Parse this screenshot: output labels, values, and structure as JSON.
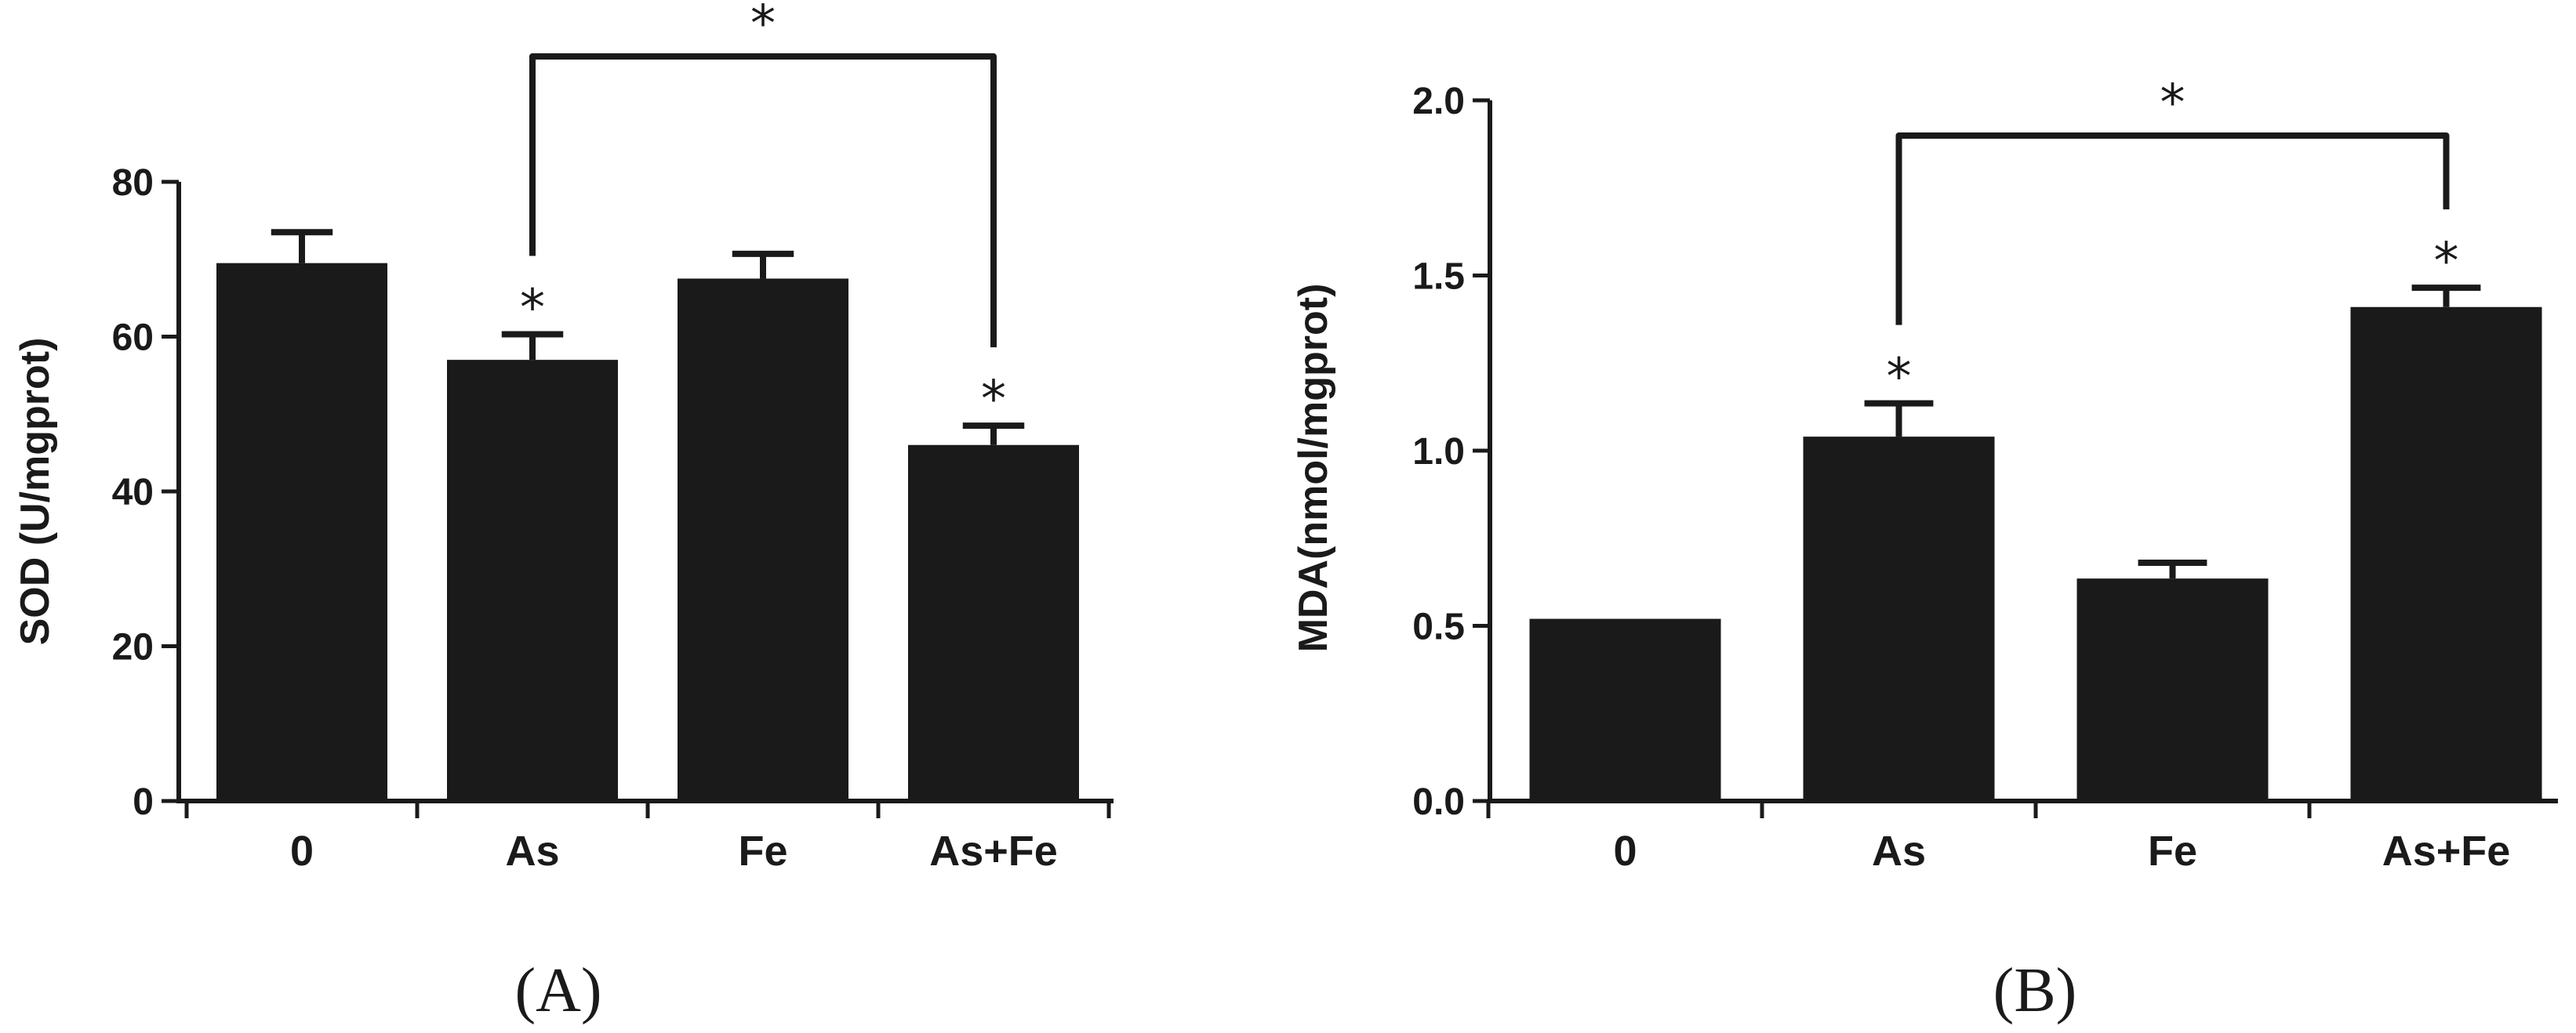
{
  "chart_data": [
    {
      "type": "bar",
      "panel_label": "(A)",
      "ylabel": "SOD (U/mgprot)",
      "categories": [
        "0",
        "As",
        "Fe",
        "As+Fe"
      ],
      "values": [
        69.5,
        57,
        67.5,
        46
      ],
      "errors": [
        4,
        3.3,
        3.2,
        2.5
      ],
      "ylim": [
        0,
        80
      ],
      "yticks": [
        0,
        20,
        40,
        60,
        80
      ],
      "ytick_labels": [
        "0",
        "20",
        "40",
        "60",
        "80"
      ],
      "significance": [
        "",
        "*",
        "",
        "*"
      ],
      "bracket": {
        "from": 1,
        "to": 3,
        "label": "*"
      },
      "color": "#1a1a1a",
      "grid": false
    },
    {
      "type": "bar",
      "panel_label": "(B)",
      "ylabel": "MDA(nmol/mgprot)",
      "categories": [
        "0",
        "As",
        "Fe",
        "As+Fe"
      ],
      "values": [
        0.52,
        1.04,
        0.635,
        1.41
      ],
      "errors": [
        0,
        0.095,
        0.045,
        0.055
      ],
      "ylim": [
        0,
        2.0
      ],
      "yticks": [
        0,
        0.5,
        1.0,
        1.5,
        2.0
      ],
      "ytick_labels": [
        "0.0",
        "0.5",
        "1.0",
        "1.5",
        "2.0"
      ],
      "significance": [
        "",
        "*",
        "",
        "*"
      ],
      "bracket": {
        "from": 1,
        "to": 3,
        "label": "*"
      },
      "color": "#1a1a1a",
      "grid": false
    }
  ]
}
